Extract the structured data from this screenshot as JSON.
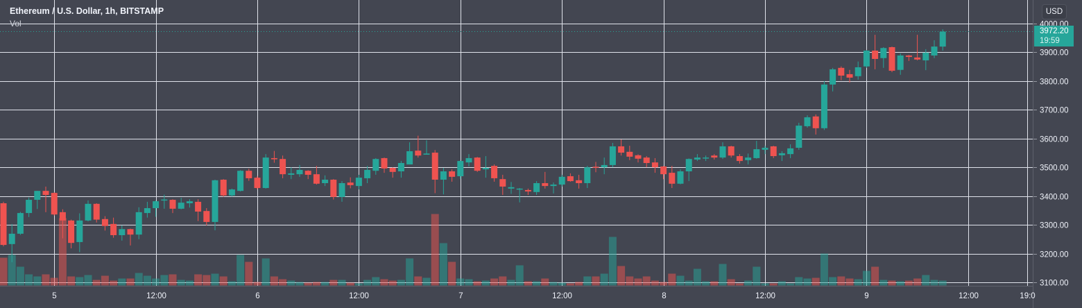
{
  "header": {
    "title": "Ethereum / U.S. Dollar, 1h, BITSTAMP",
    "volume_label": "Vol",
    "currency": "USD"
  },
  "last_price": {
    "value": 3972.2,
    "label": "3972.20",
    "countdown": "19:59"
  },
  "colors": {
    "up": "#26a69a",
    "down": "#ef5350",
    "background": "#434651",
    "grid": "#e0e3eb"
  },
  "chart_data": {
    "type": "candlestick",
    "title": "Ethereum / U.S. Dollar, 1h, BITSTAMP",
    "ylabel": "USD",
    "ylim": [
      3100,
      4000
    ],
    "grid": true,
    "y_ticks": [
      "4000.00",
      "3900.00",
      "3800.00",
      "3700.00",
      "3600.00",
      "3500.00",
      "3400.00",
      "3300.00",
      "3200.00",
      "3100.00"
    ],
    "x_ticks": [
      {
        "label": "5",
        "hour_index": 6
      },
      {
        "label": "12:00",
        "hour_index": 18
      },
      {
        "label": "6",
        "hour_index": 30
      },
      {
        "label": "12:00",
        "hour_index": 42
      },
      {
        "label": "7",
        "hour_index": 54
      },
      {
        "label": "12:00",
        "hour_index": 66
      },
      {
        "label": "8",
        "hour_index": 78
      },
      {
        "label": "12:00",
        "hour_index": 90
      },
      {
        "label": "9",
        "hour_index": 102
      },
      {
        "label": "12:00",
        "hour_index": 114
      },
      {
        "label": "19:0",
        "hour_index": 121
      }
    ],
    "candles_ohlc": [
      [
        3375,
        3380,
        3225,
        3230
      ],
      [
        3233,
        3303,
        3170,
        3269
      ],
      [
        3269,
        3345,
        3265,
        3341
      ],
      [
        3341,
        3395,
        3327,
        3387
      ],
      [
        3387,
        3418,
        3355,
        3418
      ],
      [
        3418,
        3433,
        3344,
        3404
      ],
      [
        3411,
        3413,
        3332,
        3336
      ],
      [
        3344,
        3354,
        3253,
        3315
      ],
      [
        3315,
        3318,
        3218,
        3237
      ],
      [
        3240,
        3340,
        3205,
        3315
      ],
      [
        3315,
        3385,
        3312,
        3373
      ],
      [
        3373,
        3375,
        3308,
        3318
      ],
      [
        3320,
        3330,
        3280,
        3296
      ],
      [
        3303,
        3325,
        3255,
        3264
      ],
      [
        3264,
        3298,
        3245,
        3285
      ],
      [
        3285,
        3287,
        3228,
        3266
      ],
      [
        3266,
        3361,
        3250,
        3344
      ],
      [
        3341,
        3380,
        3325,
        3358
      ],
      [
        3358,
        3385,
        3328,
        3382
      ],
      [
        3385,
        3405,
        3356,
        3388
      ],
      [
        3387,
        3389,
        3341,
        3356
      ],
      [
        3356,
        3394,
        3354,
        3377
      ],
      [
        3375,
        3389,
        3360,
        3382
      ],
      [
        3380,
        3389,
        3313,
        3346
      ],
      [
        3348,
        3358,
        3298,
        3310
      ],
      [
        3310,
        3457,
        3281,
        3455
      ],
      [
        3457,
        3459,
        3397,
        3402
      ],
      [
        3402,
        3426,
        3398,
        3423
      ],
      [
        3418,
        3490,
        3416,
        3488
      ],
      [
        3488,
        3495,
        3453,
        3462
      ],
      [
        3464,
        3470,
        3423,
        3428
      ],
      [
        3428,
        3546,
        3426,
        3534
      ],
      [
        3532,
        3557,
        3516,
        3528
      ],
      [
        3529,
        3541,
        3462,
        3476
      ],
      [
        3474,
        3500,
        3459,
        3479
      ],
      [
        3476,
        3508,
        3467,
        3491
      ],
      [
        3488,
        3490,
        3459,
        3474
      ],
      [
        3476,
        3505,
        3440,
        3443
      ],
      [
        3445,
        3472,
        3435,
        3457
      ],
      [
        3457,
        3459,
        3388,
        3397
      ],
      [
        3397,
        3452,
        3380,
        3445
      ],
      [
        3447,
        3465,
        3427,
        3438
      ],
      [
        3435,
        3474,
        3423,
        3464
      ],
      [
        3462,
        3505,
        3445,
        3491
      ],
      [
        3488,
        3532,
        3474,
        3529
      ],
      [
        3532,
        3534,
        3481,
        3496
      ],
      [
        3498,
        3500,
        3464,
        3484
      ],
      [
        3486,
        3522,
        3464,
        3515
      ],
      [
        3510,
        3587,
        3510,
        3556
      ],
      [
        3558,
        3610,
        3534,
        3541
      ],
      [
        3544,
        3594,
        3544,
        3548
      ],
      [
        3551,
        3560,
        3410,
        3457
      ],
      [
        3457,
        3498,
        3406,
        3486
      ],
      [
        3486,
        3493,
        3450,
        3467
      ],
      [
        3469,
        3524,
        3460,
        3522
      ],
      [
        3517,
        3546,
        3503,
        3532
      ],
      [
        3534,
        3536,
        3484,
        3488
      ],
      [
        3493,
        3539,
        3464,
        3498
      ],
      [
        3505,
        3510,
        3450,
        3462
      ],
      [
        3459,
        3474,
        3404,
        3433
      ],
      [
        3426,
        3449,
        3408,
        3431
      ],
      [
        3424,
        3428,
        3378,
        3426
      ],
      [
        3421,
        3426,
        3404,
        3416
      ],
      [
        3414,
        3452,
        3404,
        3445
      ],
      [
        3445,
        3484,
        3426,
        3435
      ],
      [
        3435,
        3447,
        3409,
        3440
      ],
      [
        3440,
        3474,
        3433,
        3467
      ],
      [
        3469,
        3479,
        3450,
        3452
      ],
      [
        3455,
        3474,
        3426,
        3445
      ],
      [
        3445,
        3505,
        3428,
        3500
      ],
      [
        3502,
        3519,
        3483,
        3500
      ],
      [
        3500,
        3534,
        3476,
        3508
      ],
      [
        3508,
        3585,
        3500,
        3573
      ],
      [
        3573,
        3597,
        3541,
        3551
      ],
      [
        3554,
        3575,
        3525,
        3537
      ],
      [
        3542,
        3545,
        3517,
        3530
      ],
      [
        3534,
        3539,
        3500,
        3515
      ],
      [
        3517,
        3532,
        3481,
        3500
      ],
      [
        3503,
        3505,
        3459,
        3476
      ],
      [
        3481,
        3505,
        3428,
        3443
      ],
      [
        3443,
        3493,
        3441,
        3486
      ],
      [
        3486,
        3531,
        3452,
        3529
      ],
      [
        3527,
        3546,
        3522,
        3534
      ],
      [
        3532,
        3541,
        3522,
        3534
      ],
      [
        3541,
        3546,
        3527,
        3534
      ],
      [
        3534,
        3587,
        3529,
        3573
      ],
      [
        3573,
        3575,
        3534,
        3541
      ],
      [
        3539,
        3546,
        3513,
        3522
      ],
      [
        3525,
        3548,
        3510,
        3534
      ],
      [
        3532,
        3592,
        3530,
        3563
      ],
      [
        3561,
        3575,
        3546,
        3568
      ],
      [
        3573,
        3575,
        3532,
        3539
      ],
      [
        3542,
        3556,
        3522,
        3549
      ],
      [
        3546,
        3580,
        3532,
        3566
      ],
      [
        3568,
        3655,
        3561,
        3645
      ],
      [
        3643,
        3681,
        3638,
        3674
      ],
      [
        3677,
        3684,
        3614,
        3636
      ],
      [
        3636,
        3800,
        3630,
        3788
      ],
      [
        3788,
        3846,
        3764,
        3841
      ],
      [
        3846,
        3851,
        3803,
        3819
      ],
      [
        3824,
        3839,
        3795,
        3812
      ],
      [
        3817,
        3868,
        3805,
        3848
      ],
      [
        3851,
        3908,
        3846,
        3906
      ],
      [
        3906,
        3961,
        3841,
        3877
      ],
      [
        3880,
        3918,
        3846,
        3915
      ],
      [
        3918,
        3920,
        3831,
        3836
      ],
      [
        3839,
        3896,
        3822,
        3889
      ],
      [
        3889,
        3891,
        3870,
        3884
      ],
      [
        3882,
        3961,
        3872,
        3875
      ],
      [
        3872,
        3911,
        3838,
        3899
      ],
      [
        3889,
        3942,
        3880,
        3920
      ],
      [
        3920,
        3980,
        3906,
        3972.2
      ]
    ],
    "volume_relative": [
      40,
      44,
      27,
      16,
      13,
      16,
      11,
      97,
      13,
      12,
      15,
      8,
      14,
      7,
      10,
      10,
      18,
      14,
      10,
      15,
      16,
      8,
      7,
      16,
      15,
      17,
      13,
      6,
      44,
      34,
      5,
      39,
      13,
      9,
      7,
      5,
      4,
      5,
      5,
      8,
      8,
      4,
      3,
      8,
      12,
      9,
      7,
      8,
      39,
      13,
      11,
      103,
      61,
      34,
      10,
      9,
      6,
      7,
      10,
      13,
      8,
      29,
      6,
      6,
      10,
      5,
      4,
      3,
      5,
      13,
      13,
      17,
      70,
      28,
      13,
      10,
      13,
      7,
      5,
      17,
      14,
      7,
      24,
      6,
      6,
      31,
      9,
      3,
      7,
      27,
      3,
      3,
      6,
      3,
      12,
      10,
      11,
      46,
      12,
      13,
      10,
      9,
      21,
      27,
      8,
      7,
      6,
      7,
      10,
      15,
      8,
      7
    ]
  }
}
